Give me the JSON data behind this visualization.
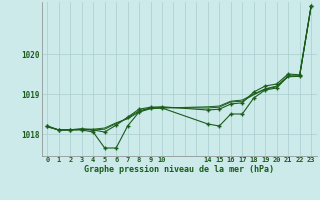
{
  "background_color": "#cceaea",
  "grid_color": "#aacccc",
  "line_color": "#1a5c1a",
  "title": "Graphe pression niveau de la mer (hPa)",
  "xlim": [
    -0.5,
    23.5
  ],
  "ylim": [
    1017.45,
    1021.3
  ],
  "yticks": [
    1018,
    1019,
    1020
  ],
  "xtick_labels": [
    "0",
    "1",
    "2",
    "3",
    "4",
    "5",
    "6",
    "7",
    "8",
    "9",
    "10",
    "",
    "",
    "",
    "14",
    "15",
    "16",
    "17",
    "18",
    "19",
    "20",
    "21",
    "22",
    "23"
  ],
  "x_all": [
    0,
    1,
    2,
    3,
    4,
    5,
    6,
    7,
    8,
    9,
    10,
    14,
    15,
    16,
    17,
    18,
    19,
    20,
    21,
    22,
    23
  ],
  "y_line1": [
    1018.2,
    1018.1,
    1018.1,
    1018.1,
    1018.05,
    1017.65,
    1017.65,
    1018.2,
    1018.55,
    1018.65,
    1018.65,
    1018.25,
    1018.2,
    1018.5,
    1018.5,
    1018.9,
    1019.1,
    1019.15,
    1019.45,
    1019.45,
    1021.2
  ],
  "y_line2": [
    1018.2,
    1018.1,
    1018.1,
    1018.12,
    1018.1,
    1018.05,
    1018.22,
    1018.42,
    1018.62,
    1018.67,
    1018.68,
    1018.6,
    1018.62,
    1018.75,
    1018.78,
    1019.05,
    1019.2,
    1019.25,
    1019.5,
    1019.48,
    1021.2
  ],
  "y_line3": [
    1018.18,
    1018.1,
    1018.11,
    1018.13,
    1018.12,
    1018.15,
    1018.28,
    1018.38,
    1018.55,
    1018.63,
    1018.65,
    1018.68,
    1018.7,
    1018.82,
    1018.85,
    1019.0,
    1019.13,
    1019.2,
    1019.45,
    1019.45,
    1021.18
  ],
  "y_line4": [
    1018.18,
    1018.1,
    1018.11,
    1018.12,
    1018.1,
    1018.12,
    1018.26,
    1018.4,
    1018.58,
    1018.65,
    1018.66,
    1018.65,
    1018.67,
    1018.8,
    1018.82,
    1018.98,
    1019.12,
    1019.18,
    1019.43,
    1019.44,
    1021.17
  ]
}
